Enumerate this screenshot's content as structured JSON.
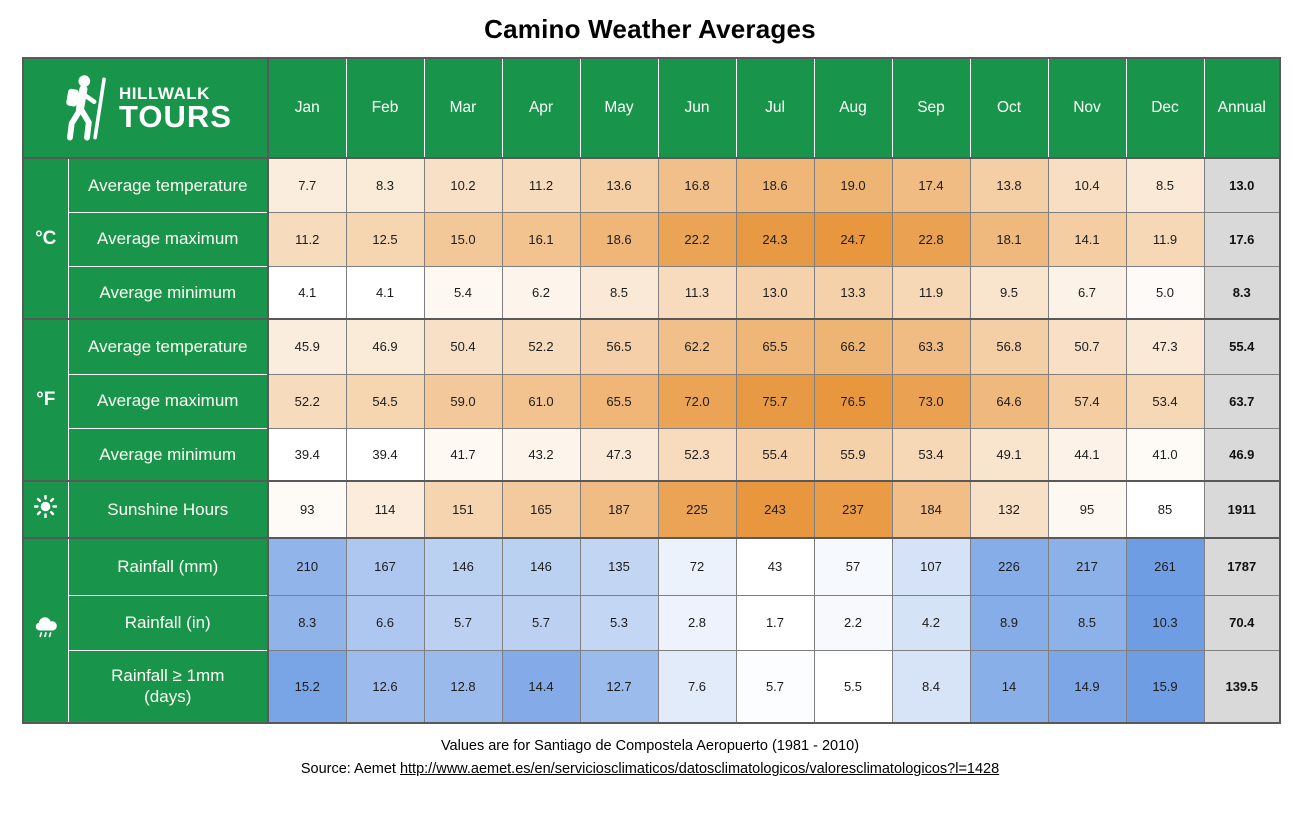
{
  "title": "Camino Weather Averages",
  "logo": {
    "icon": "hiker-icon",
    "brand_top": "HILLWALK",
    "brand_bottom": "TOURS"
  },
  "colors": {
    "brand_green": "#18954A",
    "border_dark": "#595959",
    "border_cell": "#7F7F7F",
    "annual_bg": "#D9D9D9",
    "orange_max": "#E8973F",
    "blue_max": "#6F9DE4",
    "header_text": "#FFFFFF"
  },
  "chart_data": {
    "type": "table",
    "title": "Camino Weather Averages",
    "columns": [
      "Jan",
      "Feb",
      "Mar",
      "Apr",
      "May",
      "Jun",
      "Jul",
      "Aug",
      "Sep",
      "Oct",
      "Nov",
      "Dec"
    ],
    "annual_label": "Annual",
    "groups": [
      {
        "unit": "°C",
        "scale": "orange",
        "scale_scope": "group",
        "rows": [
          {
            "label": "Average temperature",
            "values": [
              "7.7",
              "8.3",
              "10.2",
              "11.2",
              "13.6",
              "16.8",
              "18.6",
              "19.0",
              "17.4",
              "13.8",
              "10.4",
              "8.5"
            ],
            "annual": "13.0"
          },
          {
            "label": "Average maximum",
            "values": [
              "11.2",
              "12.5",
              "15.0",
              "16.1",
              "18.6",
              "22.2",
              "24.3",
              "24.7",
              "22.8",
              "18.1",
              "14.1",
              "11.9"
            ],
            "annual": "17.6"
          },
          {
            "label": "Average minimum",
            "values": [
              "4.1",
              "4.1",
              "5.4",
              "6.2",
              "8.5",
              "11.3",
              "13.0",
              "13.3",
              "11.9",
              "9.5",
              "6.7",
              "5.0"
            ],
            "annual": "8.3"
          }
        ]
      },
      {
        "unit": "°F",
        "scale": "orange",
        "scale_scope": "group",
        "rows": [
          {
            "label": "Average temperature",
            "values": [
              "45.9",
              "46.9",
              "50.4",
              "52.2",
              "56.5",
              "62.2",
              "65.5",
              "66.2",
              "63.3",
              "56.8",
              "50.7",
              "47.3"
            ],
            "annual": "55.4"
          },
          {
            "label": "Average maximum",
            "values": [
              "52.2",
              "54.5",
              "59.0",
              "61.0",
              "65.5",
              "72.0",
              "75.7",
              "76.5",
              "73.0",
              "64.6",
              "57.4",
              "53.4"
            ],
            "annual": "63.7"
          },
          {
            "label": "Average minimum",
            "values": [
              "39.4",
              "39.4",
              "41.7",
              "43.2",
              "47.3",
              "52.3",
              "55.4",
              "55.9",
              "53.4",
              "49.1",
              "44.1",
              "41.0"
            ],
            "annual": "46.9"
          }
        ]
      },
      {
        "icon": "sun-icon",
        "scale": "orange",
        "scale_scope": "row",
        "rows": [
          {
            "label": "Sunshine Hours",
            "values": [
              "93",
              "114",
              "151",
              "165",
              "187",
              "225",
              "243",
              "237",
              "184",
              "132",
              "95",
              "85"
            ],
            "annual": "1911"
          }
        ]
      },
      {
        "icon": "rain-icon",
        "scale": "blue",
        "scale_scope": "row",
        "rows": [
          {
            "label": "Rainfall (mm)",
            "values": [
              "210",
              "167",
              "146",
              "146",
              "135",
              "72",
              "43",
              "57",
              "107",
              "226",
              "217",
              "261"
            ],
            "annual": "1787"
          },
          {
            "label": "Rainfall (in)",
            "values": [
              "8.3",
              "6.6",
              "5.7",
              "5.7",
              "5.3",
              "2.8",
              "1.7",
              "2.2",
              "4.2",
              "8.9",
              "8.5",
              "10.3"
            ],
            "annual": "70.4"
          },
          {
            "label": "Rainfall ≥ 1mm\n(days)",
            "values": [
              "15.2",
              "12.6",
              "12.8",
              "14.4",
              "12.7",
              "7.6",
              "5.7",
              "5.5",
              "8.4",
              "14",
              "14.9",
              "15.9"
            ],
            "annual": "139.5"
          }
        ]
      }
    ]
  },
  "footer": {
    "note": "Values are for Santiago de Compostela Aeropuerto (1981 - 2010)",
    "source_prefix": "Source: Aemet ",
    "source_link": "http://www.aemet.es/en/serviciosclimaticos/datosclimatologicos/valoresclimatologicos?l=1428"
  }
}
